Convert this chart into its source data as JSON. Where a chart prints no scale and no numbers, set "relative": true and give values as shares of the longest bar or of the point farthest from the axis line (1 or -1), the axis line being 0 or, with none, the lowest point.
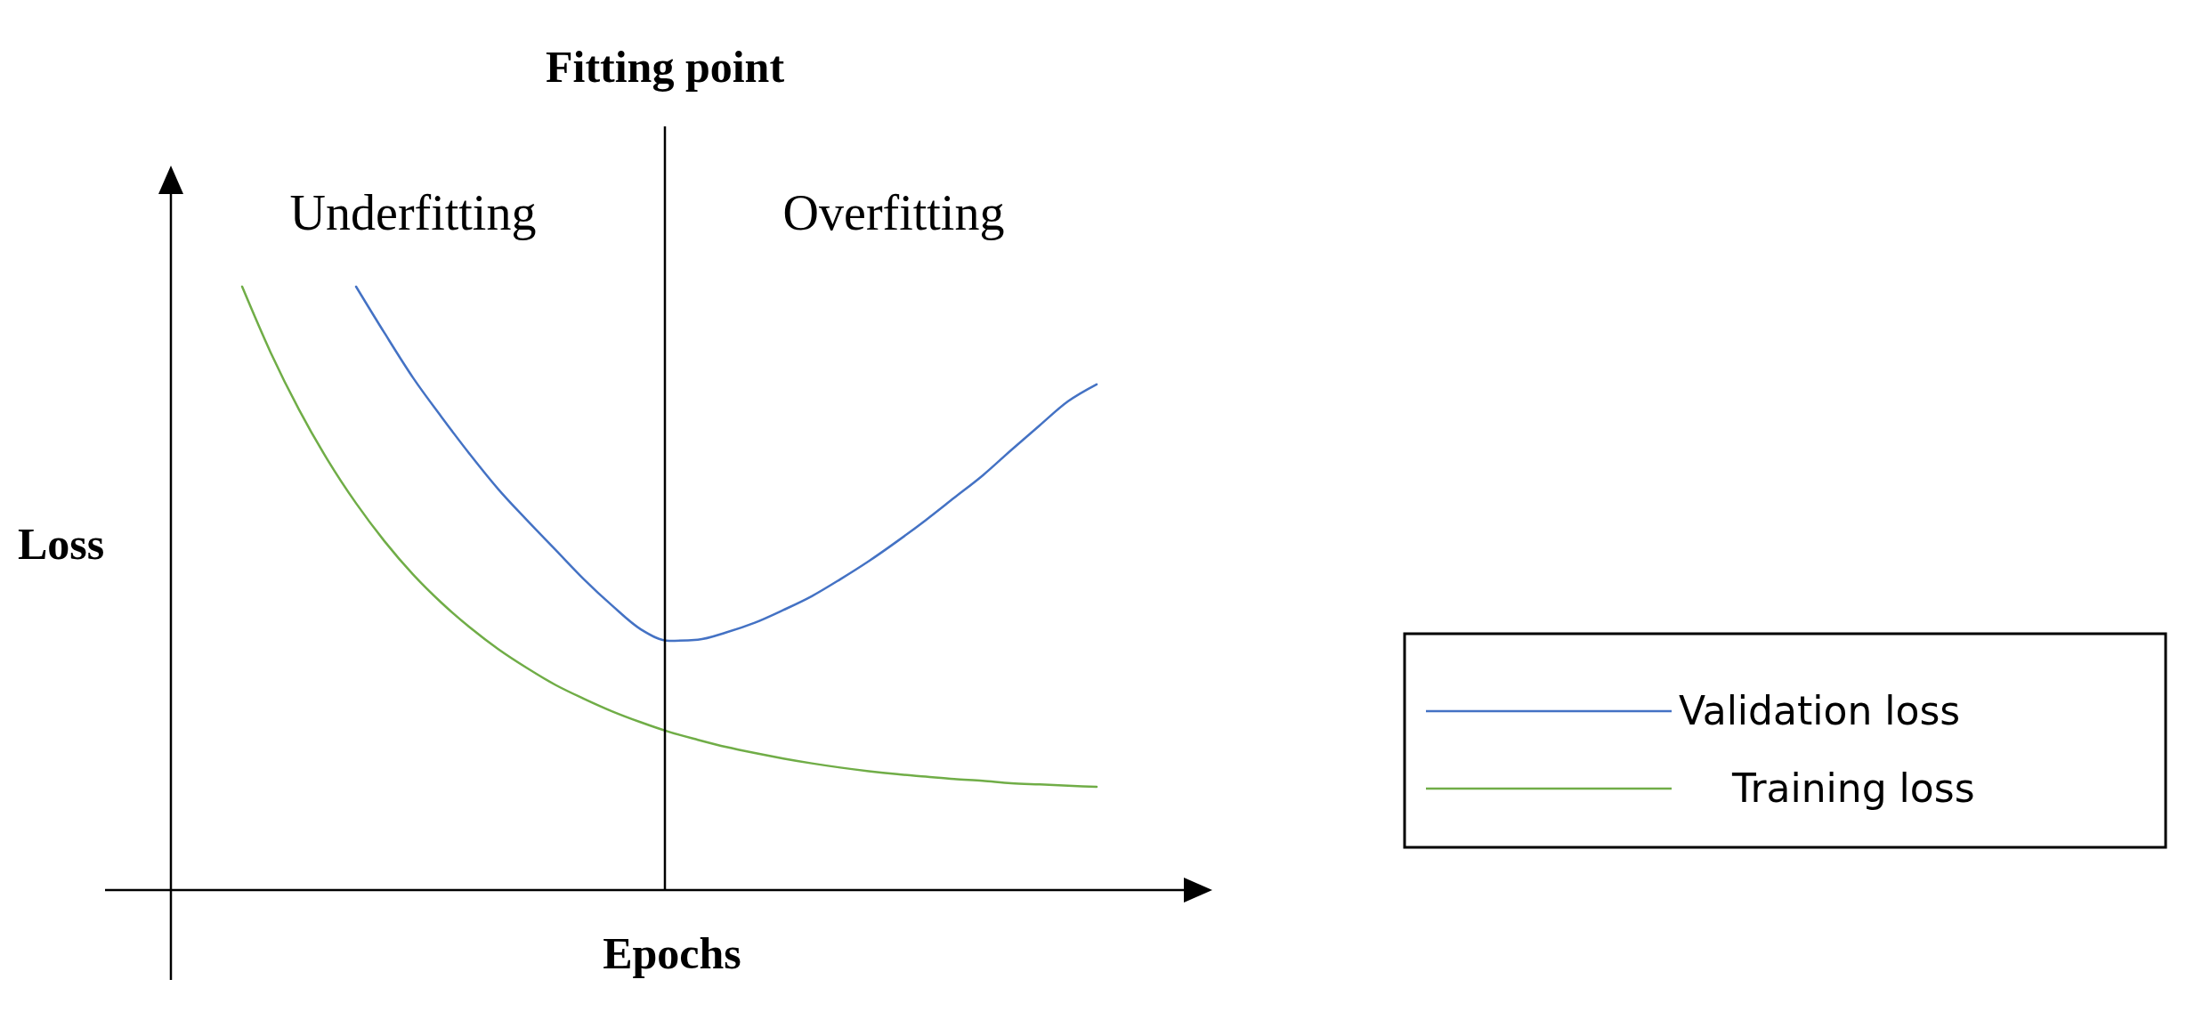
{
  "chart_data": {
    "type": "line",
    "relative": true,
    "xlabel": "Epochs",
    "ylabel": "Loss",
    "legend": "right",
    "line_style": "solid",
    "categories": [
      null,
      null,
      null,
      null,
      null,
      null,
      null,
      null,
      null,
      null,
      null,
      null,
      null,
      null,
      null,
      null,
      null,
      null,
      null,
      null,
      null,
      null,
      null,
      null,
      null,
      null,
      null,
      null,
      null,
      null,
      null
    ],
    "series": [
      {
        "name": "Validation loss",
        "color": "#4472c4",
        "values": [
          null,
          null,
          null,
          null,
          1.0,
          0.923,
          0.849,
          0.784,
          0.722,
          0.664,
          0.613,
          0.564,
          0.515,
          0.471,
          0.432,
          0.413,
          0.415,
          0.427,
          0.443,
          0.464,
          0.487,
          0.515,
          0.545,
          0.578,
          0.613,
          0.65,
          0.687,
          0.729,
          0.77,
          0.81,
          0.838
        ]
      },
      {
        "name": "Training loss",
        "color": "#70ad47",
        "values": [
          1.0,
          0.891,
          0.796,
          0.713,
          0.641,
          0.578,
          0.523,
          0.476,
          0.435,
          0.399,
          0.368,
          0.34,
          0.317,
          0.296,
          0.278,
          0.262,
          0.249,
          0.237,
          0.227,
          0.218,
          0.21,
          0.203,
          0.197,
          0.192,
          0.188,
          0.184,
          0.181,
          0.177,
          0.175,
          0.173,
          0.171
        ]
      }
    ],
    "annotations": [
      "Fitting point",
      "Underfitting",
      "Overfitting"
    ]
  }
}
